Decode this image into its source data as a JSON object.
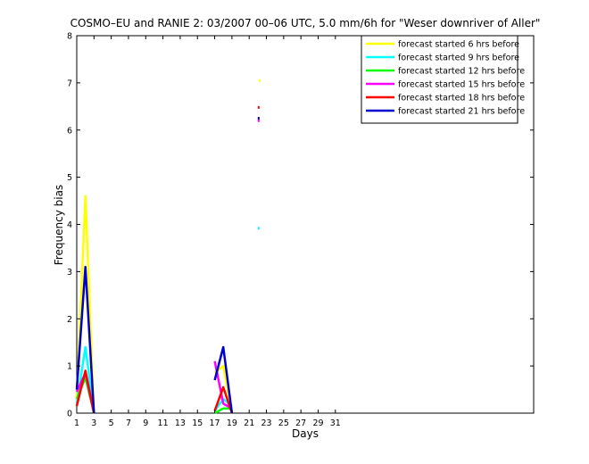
{
  "chart_data": {
    "type": "line",
    "title": "COSMO–EU and RANIE 2: 03/2007 00–06 UTC, 5.0 mm/6h for \"Weser downriver of Aller\"",
    "xlabel": "Days",
    "ylabel": "Frequency bias",
    "xlim": [
      1,
      54
    ],
    "ylim": [
      0,
      8
    ],
    "xticks": [
      "1",
      "3",
      "5",
      "7",
      "9",
      "11",
      "13",
      "15",
      "17",
      "19",
      "21",
      "23",
      "25",
      "27",
      "29",
      "31"
    ],
    "yticks": [
      "0",
      "1",
      "2",
      "3",
      "4",
      "5",
      "6",
      "7",
      "8"
    ],
    "grid": false,
    "legend_position": "top-right",
    "series": [
      {
        "name": "forecast started 6 hrs before",
        "color": "#ffff00",
        "segments": [
          [
            [
              1,
              0.3
            ],
            [
              2,
              4.6
            ],
            [
              3,
              0
            ]
          ],
          [
            [
              17,
              0.85
            ],
            [
              18,
              1.0
            ],
            [
              19,
              0
            ]
          ]
        ],
        "points": [
          [
            22.2,
            7.05
          ]
        ]
      },
      {
        "name": "forecast started 9 hrs before",
        "color": "#00ffff",
        "segments": [
          [
            [
              1,
              0.2
            ],
            [
              2,
              1.4
            ],
            [
              3,
              0
            ]
          ],
          [
            [
              17,
              0.05
            ],
            [
              18,
              0.3
            ],
            [
              19,
              0.15
            ]
          ]
        ],
        "points": [
          [
            22.1,
            3.92
          ]
        ]
      },
      {
        "name": "forecast started 12 hrs before",
        "color": "#00ff00",
        "segments": [
          [
            [
              1,
              0.3
            ],
            [
              2,
              0.75
            ],
            [
              3,
              0
            ]
          ],
          [
            [
              17,
              0
            ],
            [
              18,
              0.1
            ],
            [
              19,
              0.1
            ]
          ]
        ],
        "points": []
      },
      {
        "name": "forecast started 15 hrs before",
        "color": "#ff00ff",
        "segments": [
          [
            [
              1,
              0.45
            ],
            [
              2,
              0.85
            ],
            [
              3,
              0
            ]
          ],
          [
            [
              17,
              1.1
            ],
            [
              18,
              0.2
            ],
            [
              19,
              0.1
            ]
          ]
        ],
        "points": [
          [
            22.1,
            6.2
          ]
        ]
      },
      {
        "name": "forecast started 18 hrs before",
        "color": "#ff0000",
        "segments": [
          [
            [
              1,
              0.15
            ],
            [
              2,
              0.9
            ],
            [
              3,
              0
            ]
          ],
          [
            [
              17,
              0.05
            ],
            [
              18,
              0.55
            ],
            [
              19,
              0
            ]
          ]
        ],
        "points": [
          [
            22.1,
            6.48
          ]
        ]
      },
      {
        "name": "forecast started 21 hrs before",
        "color": "#0000cc",
        "segments": [
          [
            [
              1,
              0.5
            ],
            [
              2,
              3.1
            ],
            [
              3,
              0
            ]
          ],
          [
            [
              17,
              0.7
            ],
            [
              18,
              1.4
            ],
            [
              19,
              0
            ]
          ]
        ],
        "points": [
          [
            22.1,
            6.25
          ]
        ]
      }
    ]
  }
}
